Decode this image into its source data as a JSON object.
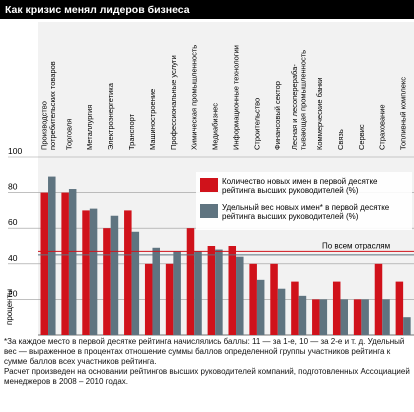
{
  "chart_data": {
    "type": "bar",
    "title": "Как кризис менял лидеров бизнеса",
    "y_label": "проценты",
    "categories": [
      "Производство\nпотребительских товаров",
      "Торговля",
      "Металлургия",
      "Электроэнергетика",
      "Транспорт",
      "Машиностроение",
      "Профессиональные услуги",
      "Химическая промышленность",
      "Медиабизнес",
      "Информационные технологии",
      "Строительство",
      "Финансовый сектор",
      "Лесная и лесоперераба-\nтывающая промышленность",
      "Коммерческие банки",
      "Связь",
      "Сервис",
      "Страхование",
      "Топливный комплекс"
    ],
    "series": [
      {
        "name": "Количество новых имен в первой десятке рейтинга высших руководителей (%)",
        "color": "#d0121b",
        "values": [
          80,
          80,
          70,
          60,
          70,
          40,
          40,
          60,
          50,
          50,
          40,
          40,
          30,
          20,
          30,
          20,
          40,
          30
        ]
      },
      {
        "name": "Удельный вес новых имен* в первой десятке рейтинга высших руководителей (%)",
        "color": "#5f7480",
        "values": [
          89,
          82,
          71,
          67,
          58,
          49,
          47,
          47,
          48,
          44,
          31,
          26,
          22,
          20,
          20,
          20,
          20,
          10
        ]
      }
    ],
    "reference": {
      "label": "По всем отраслям",
      "values": [
        47,
        45
      ]
    },
    "ylim": [
      0,
      100
    ],
    "yticks": [
      20,
      40,
      60,
      80,
      100
    ],
    "grid": true,
    "notes": [
      "*За каждое место в первой десятке рейтинга начислялись баллы: 11 — за 1-е, 10 — за 2-е и т. д. Удельный вес — выраженное в процентах отношение суммы баллов определенной группы участников рейтинга к сумме баллов всех участников рейтинга.",
      "Расчет произведен на основании рейтингов высших руководителей компаний, подготовленных Ассоциацией менеджеров в 2008 – 2010 годах."
    ]
  }
}
